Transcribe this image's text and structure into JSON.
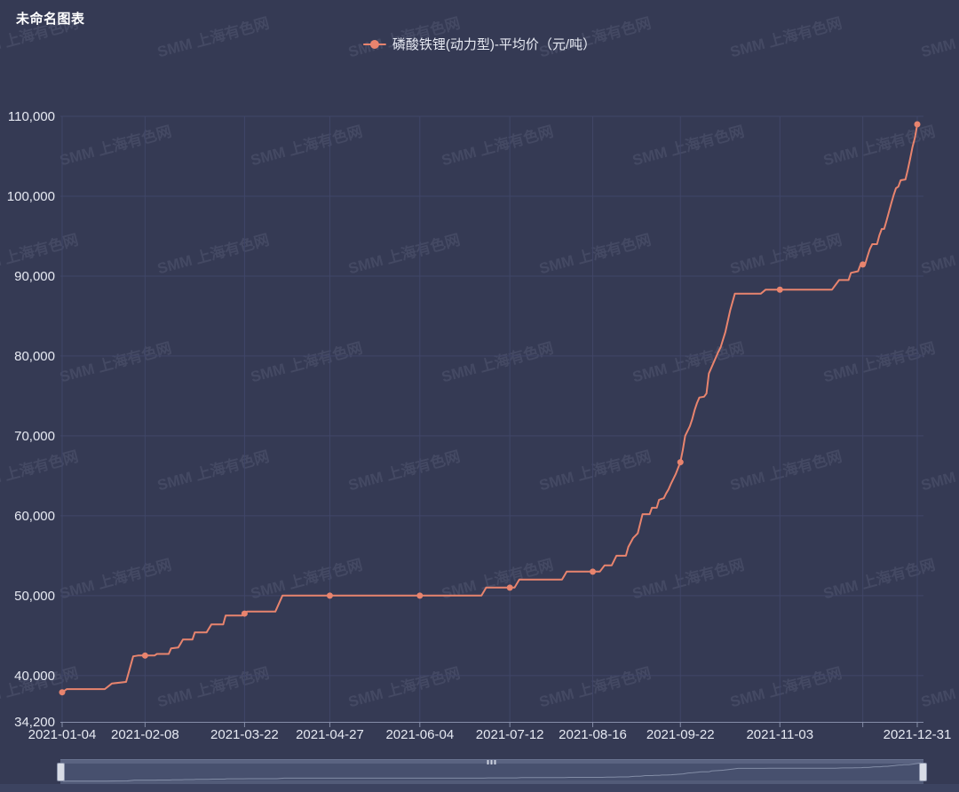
{
  "header": {
    "title": "未命名图表"
  },
  "legend": {
    "items": [
      {
        "label": "磷酸铁锂(动力型)-平均价（元/吨）",
        "color": "#e8846e"
      }
    ]
  },
  "watermark": {
    "text": "SMM 上海有色网"
  },
  "colors": {
    "background": "#353a54",
    "series": "#e8846e",
    "grid_line": "#404668",
    "axis_line": "#858da8",
    "axis_text": "#e6e9f2",
    "slider_track": "#47506e",
    "slider_shadow": "rgba(190,200,222,0.5)"
  },
  "chart_data": {
    "type": "line",
    "title": "未命名图表",
    "xlabel": "",
    "ylabel": "",
    "unit": "元/吨",
    "ylim": [
      34200,
      110000
    ],
    "x_range": [
      "2021-01-04",
      "2021-12-31"
    ],
    "grid": true,
    "legend_position": "top-center",
    "y_ticks": [
      {
        "value": 34200,
        "label": "34,200"
      },
      {
        "value": 40000,
        "label": "40,000"
      },
      {
        "value": 50000,
        "label": "50,000"
      },
      {
        "value": 60000,
        "label": "60,000"
      },
      {
        "value": 70000,
        "label": "70,000"
      },
      {
        "value": 80000,
        "label": "80,000"
      },
      {
        "value": 90000,
        "label": "90,000"
      },
      {
        "value": 100000,
        "label": "100,000"
      },
      {
        "value": 110000,
        "label": "110,000"
      }
    ],
    "x_ticks": [
      {
        "date": "2021-01-04",
        "label": "2021-01-04"
      },
      {
        "date": "2021-02-08",
        "label": "2021-02-08"
      },
      {
        "date": "2021-03-22",
        "label": "2021-03-22"
      },
      {
        "date": "2021-04-27",
        "label": "2021-04-27"
      },
      {
        "date": "2021-06-04",
        "label": "2021-06-04"
      },
      {
        "date": "2021-07-12",
        "label": "2021-07-12"
      },
      {
        "date": "2021-08-16",
        "label": "2021-08-16"
      },
      {
        "date": "2021-09-22",
        "label": "2021-09-22"
      },
      {
        "date": "2021-11-03",
        "label": "2021-11-03"
      },
      {
        "date": "2021-12-08",
        "label": ""
      },
      {
        "date": "2021-12-31",
        "label": "2021-12-31"
      }
    ],
    "marker_dates": [
      "2021-01-04",
      "2021-02-08",
      "2021-03-22",
      "2021-04-27",
      "2021-06-04",
      "2021-07-12",
      "2021-08-16",
      "2021-09-22",
      "2021-11-03",
      "2021-12-08",
      "2021-12-31"
    ],
    "series": [
      {
        "name": "磷酸铁锂(动力型)-平均价（元/吨）",
        "color": "#e8846e",
        "points": [
          [
            "2021-01-04",
            37900
          ],
          [
            "2021-01-06",
            38300
          ],
          [
            "2021-01-22",
            38300
          ],
          [
            "2021-01-25",
            39000
          ],
          [
            "2021-01-31",
            39200
          ],
          [
            "2021-02-03",
            42400
          ],
          [
            "2021-02-05",
            42500
          ],
          [
            "2021-02-12",
            42500
          ],
          [
            "2021-02-13",
            42700
          ],
          [
            "2021-02-18",
            42700
          ],
          [
            "2021-02-19",
            43400
          ],
          [
            "2021-02-22",
            43500
          ],
          [
            "2021-02-23",
            44000
          ],
          [
            "2021-02-24",
            44500
          ],
          [
            "2021-02-28",
            44500
          ],
          [
            "2021-03-01",
            45400
          ],
          [
            "2021-03-06",
            45400
          ],
          [
            "2021-03-08",
            46400
          ],
          [
            "2021-03-13",
            46400
          ],
          [
            "2021-03-14",
            47500
          ],
          [
            "2021-03-21",
            47500
          ],
          [
            "2021-03-23",
            48000
          ],
          [
            "2021-04-04",
            48000
          ],
          [
            "2021-04-07",
            50000
          ],
          [
            "2021-06-30",
            50000
          ],
          [
            "2021-07-02",
            51000
          ],
          [
            "2021-07-14",
            51000
          ],
          [
            "2021-07-16",
            52000
          ],
          [
            "2021-08-03",
            52000
          ],
          [
            "2021-08-05",
            53000
          ],
          [
            "2021-08-19",
            53000
          ],
          [
            "2021-08-21",
            53800
          ],
          [
            "2021-08-24",
            53800
          ],
          [
            "2021-08-26",
            55000
          ],
          [
            "2021-08-30",
            55000
          ],
          [
            "2021-08-31",
            56100
          ],
          [
            "2021-09-02",
            57200
          ],
          [
            "2021-09-04",
            57800
          ],
          [
            "2021-09-06",
            60200
          ],
          [
            "2021-09-09",
            60200
          ],
          [
            "2021-09-10",
            61000
          ],
          [
            "2021-09-12",
            61000
          ],
          [
            "2021-09-13",
            62000
          ],
          [
            "2021-09-15",
            62200
          ],
          [
            "2021-09-16",
            62800
          ],
          [
            "2021-09-17",
            63300
          ],
          [
            "2021-09-18",
            64000
          ],
          [
            "2021-09-20",
            65200
          ],
          [
            "2021-09-22",
            66700
          ],
          [
            "2021-09-23",
            68200
          ],
          [
            "2021-09-24",
            70000
          ],
          [
            "2021-09-26",
            71200
          ],
          [
            "2021-09-27",
            72100
          ],
          [
            "2021-09-28",
            73200
          ],
          [
            "2021-09-29",
            74100
          ],
          [
            "2021-09-30",
            74800
          ],
          [
            "2021-10-02",
            74900
          ],
          [
            "2021-10-03",
            75300
          ],
          [
            "2021-10-04",
            77800
          ],
          [
            "2021-10-08",
            80500
          ],
          [
            "2021-10-09",
            81100
          ],
          [
            "2021-10-11",
            83000
          ],
          [
            "2021-10-13",
            85700
          ],
          [
            "2021-10-15",
            87800
          ],
          [
            "2021-10-26",
            87800
          ],
          [
            "2021-10-28",
            88300
          ],
          [
            "2021-11-25",
            88300
          ],
          [
            "2021-11-28",
            89500
          ],
          [
            "2021-12-02",
            89500
          ],
          [
            "2021-12-03",
            90400
          ],
          [
            "2021-12-06",
            90600
          ],
          [
            "2021-12-07",
            91400
          ],
          [
            "2021-12-09",
            91500
          ],
          [
            "2021-12-10",
            92500
          ],
          [
            "2021-12-11",
            93400
          ],
          [
            "2021-12-12",
            94000
          ],
          [
            "2021-12-14",
            94000
          ],
          [
            "2021-12-15",
            95100
          ],
          [
            "2021-12-16",
            95900
          ],
          [
            "2021-12-17",
            95900
          ],
          [
            "2021-12-18",
            96900
          ],
          [
            "2021-12-19",
            98000
          ],
          [
            "2021-12-20",
            99100
          ],
          [
            "2021-12-21",
            100100
          ],
          [
            "2021-12-22",
            101000
          ],
          [
            "2021-12-23",
            101200
          ],
          [
            "2021-12-24",
            102000
          ],
          [
            "2021-12-26",
            102100
          ],
          [
            "2021-12-27",
            103300
          ],
          [
            "2021-12-28",
            104700
          ],
          [
            "2021-12-29",
            106200
          ],
          [
            "2021-12-30",
            107300
          ],
          [
            "2021-12-31",
            109000
          ]
        ]
      }
    ]
  }
}
